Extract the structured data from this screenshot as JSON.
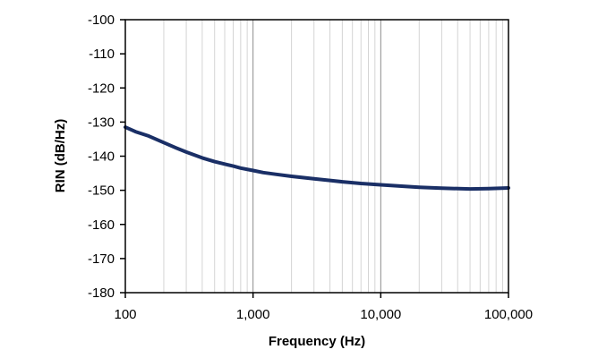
{
  "chart_data": {
    "type": "line",
    "title": "",
    "xlabel": "Frequency (Hz)",
    "ylabel": "RIN (dB/Hz)",
    "x_scale": "log",
    "xlim": [
      100,
      100000
    ],
    "ylim": [
      -180,
      -100
    ],
    "grid": true,
    "x_ticks": [
      100,
      1000,
      10000,
      100000
    ],
    "x_tick_labels": [
      "100",
      "1,000",
      "10,000",
      "100,000"
    ],
    "y_ticks": [
      -100,
      -110,
      -120,
      -130,
      -140,
      -150,
      -160,
      -170,
      -180
    ],
    "y_tick_labels": [
      "-100",
      "-110",
      "-120",
      "-130",
      "-140",
      "-150",
      "-160",
      "-170",
      "-180"
    ],
    "series": [
      {
        "color": "#1a2f66",
        "x": [
          100,
          120,
          150,
          200,
          250,
          300,
          400,
          500,
          600,
          700,
          800,
          1000,
          1200,
          1500,
          2000,
          3000,
          4000,
          5000,
          7000,
          10000,
          15000,
          20000,
          30000,
          50000,
          70000,
          100000
        ],
        "y": [
          -131.5,
          -132.8,
          -134,
          -136,
          -137.6,
          -138.8,
          -140.5,
          -141.6,
          -142.3,
          -142.9,
          -143.5,
          -144.2,
          -144.8,
          -145.3,
          -145.9,
          -146.6,
          -147.1,
          -147.5,
          -148,
          -148.4,
          -148.8,
          -149.1,
          -149.4,
          -149.6,
          -149.5,
          -149.3
        ]
      }
    ]
  }
}
